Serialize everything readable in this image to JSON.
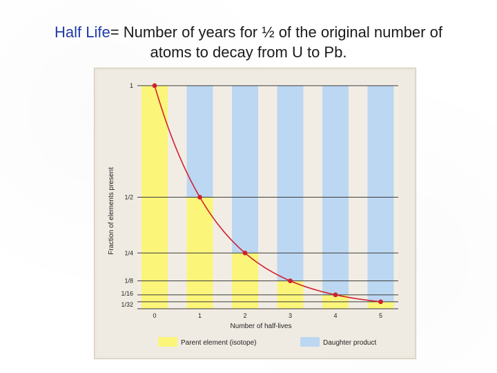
{
  "slide": {
    "title_highlight": "Half Life",
    "title_rest_line1": "= Number of years for ½ of the original number of",
    "title_line2": "atoms to decay from U to Pb."
  },
  "colors": {
    "parent": "#fbf57a",
    "daughter": "#bcd7f2",
    "curve": "#d0202f",
    "highlight_text": "#1f3aa8"
  },
  "chart_data": {
    "type": "bar",
    "stacked": true,
    "categories": [
      "0",
      "1",
      "2",
      "3",
      "4",
      "5"
    ],
    "x": [
      0,
      1,
      2,
      3,
      4,
      5
    ],
    "series": [
      {
        "name": "Parent element (isotope)",
        "values": [
          1,
          0.5,
          0.25,
          0.125,
          0.0625,
          0.03125
        ]
      },
      {
        "name": "Daughter product",
        "values": [
          0,
          0.5,
          0.75,
          0.875,
          0.9375,
          0.96875
        ]
      }
    ],
    "curve": {
      "x": [
        0,
        1,
        2,
        3,
        4,
        5
      ],
      "y": [
        1,
        0.5,
        0.25,
        0.125,
        0.0625,
        0.03125
      ]
    },
    "xlabel": "Number of half-lives",
    "ylabel": "Fraction of elements present",
    "yticks": [
      {
        "value": 1,
        "label": "1"
      },
      {
        "value": 0.5,
        "label": "1/2"
      },
      {
        "value": 0.25,
        "label": "1/4"
      },
      {
        "value": 0.125,
        "label": "1/8"
      },
      {
        "value": 0.0625,
        "label": "1/16"
      },
      {
        "value": 0.03125,
        "label": "1/32"
      }
    ],
    "ylim": [
      0,
      1
    ],
    "grid": true,
    "legend_position": "bottom"
  }
}
